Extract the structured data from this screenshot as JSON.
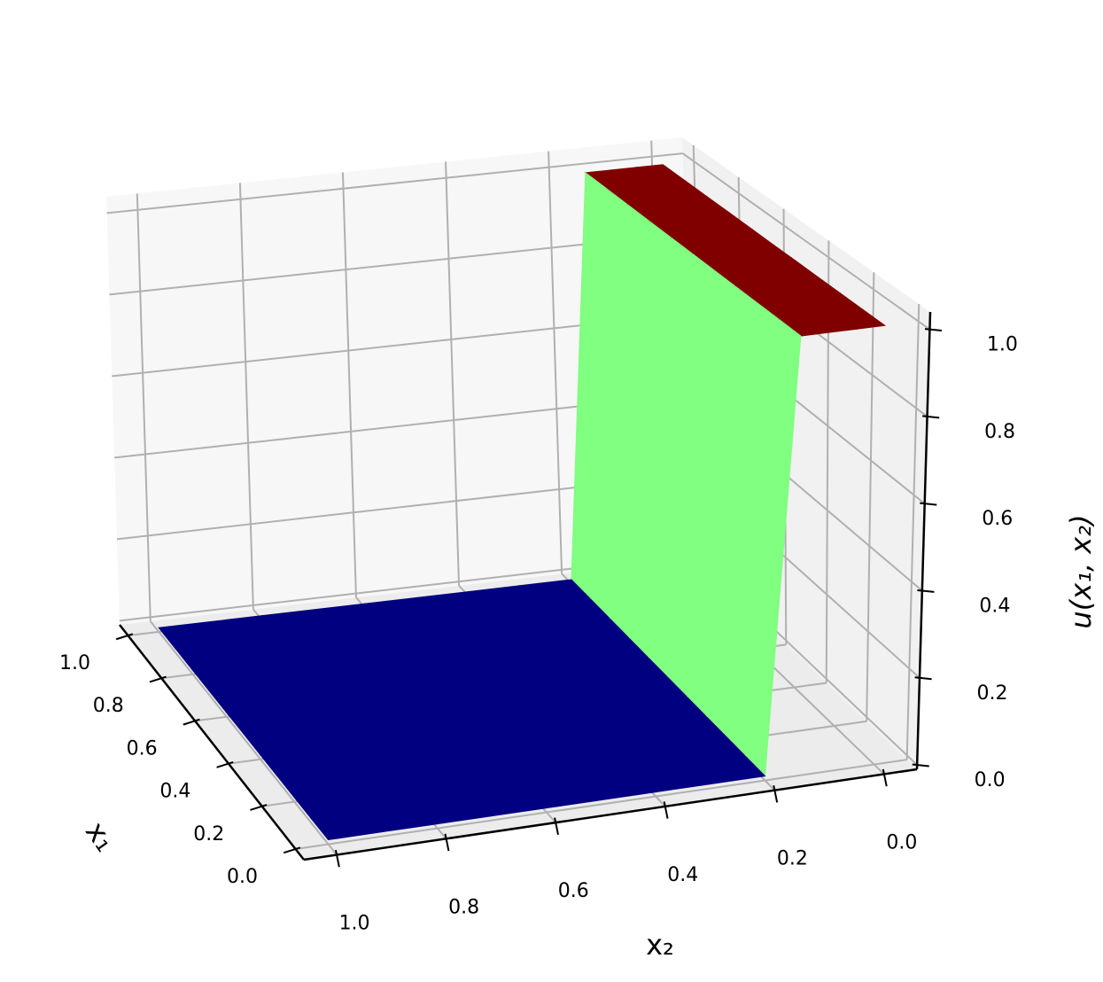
{
  "chart_data": {
    "type": "surface3d",
    "colormap": "jet",
    "xlabel": "x₂",
    "ylabel": "x₁",
    "zlabel": "u(x₁, x₂)",
    "x1": [
      0,
      0.1,
      0.2,
      0.3,
      0.4,
      0.5,
      0.6,
      0.7,
      0.8,
      0.9,
      1
    ],
    "x2": [
      0,
      0.05,
      0.1,
      0.15,
      0.2,
      0.3,
      0.4,
      0.5,
      0.6,
      0.7,
      0.8,
      0.9,
      1
    ],
    "z": [
      [
        1,
        1,
        1,
        1,
        0,
        0,
        0,
        0,
        0,
        0,
        0,
        0,
        0
      ],
      [
        1,
        1,
        1,
        1,
        0,
        0,
        0,
        0,
        0,
        0,
        0,
        0,
        0
      ],
      [
        1,
        1,
        1,
        1,
        0,
        0,
        0,
        0,
        0,
        0,
        0,
        0,
        0
      ],
      [
        1,
        1,
        1,
        1,
        0,
        0,
        0,
        0,
        0,
        0,
        0,
        0,
        0
      ],
      [
        1,
        1,
        1,
        1,
        0,
        0,
        0,
        0,
        0,
        0,
        0,
        0,
        0
      ],
      [
        1,
        1,
        1,
        1,
        0,
        0,
        0,
        0,
        0,
        0,
        0,
        0,
        0
      ],
      [
        1,
        1,
        1,
        1,
        0,
        0,
        0,
        0,
        0,
        0,
        0,
        0,
        0
      ],
      [
        1,
        1,
        1,
        1,
        0,
        0,
        0,
        0,
        0,
        0,
        0,
        0,
        0
      ],
      [
        1,
        1,
        1,
        1,
        0,
        0,
        0,
        0,
        0,
        0,
        0,
        0,
        0
      ],
      [
        1,
        1,
        1,
        1,
        0,
        0,
        0,
        0,
        0,
        0,
        0,
        0,
        0
      ],
      [
        1,
        1,
        1,
        1,
        0,
        0,
        0,
        0,
        0,
        0,
        0,
        0,
        0
      ]
    ],
    "x1lim": [
      -0.05,
      1.05
    ],
    "x2lim": [
      -0.06,
      1.06
    ],
    "zlim": [
      -0.01,
      1.04
    ],
    "x1ticks": [
      {
        "value": 0,
        "label": "0.0"
      },
      0.2,
      0.4,
      0.6,
      0.8,
      {
        "value": 1,
        "label": "1.0"
      }
    ],
    "x2ticks": [
      {
        "value": 0,
        "label": "0.0"
      },
      0.2,
      0.4,
      0.6,
      0.8,
      {
        "value": 1,
        "label": "1.0"
      }
    ],
    "zticks": [
      {
        "value": 0,
        "label": "0.0"
      },
      0.2,
      0.4,
      0.6,
      0.8,
      {
        "value": 1,
        "label": "1.0"
      }
    ],
    "grid": true
  }
}
